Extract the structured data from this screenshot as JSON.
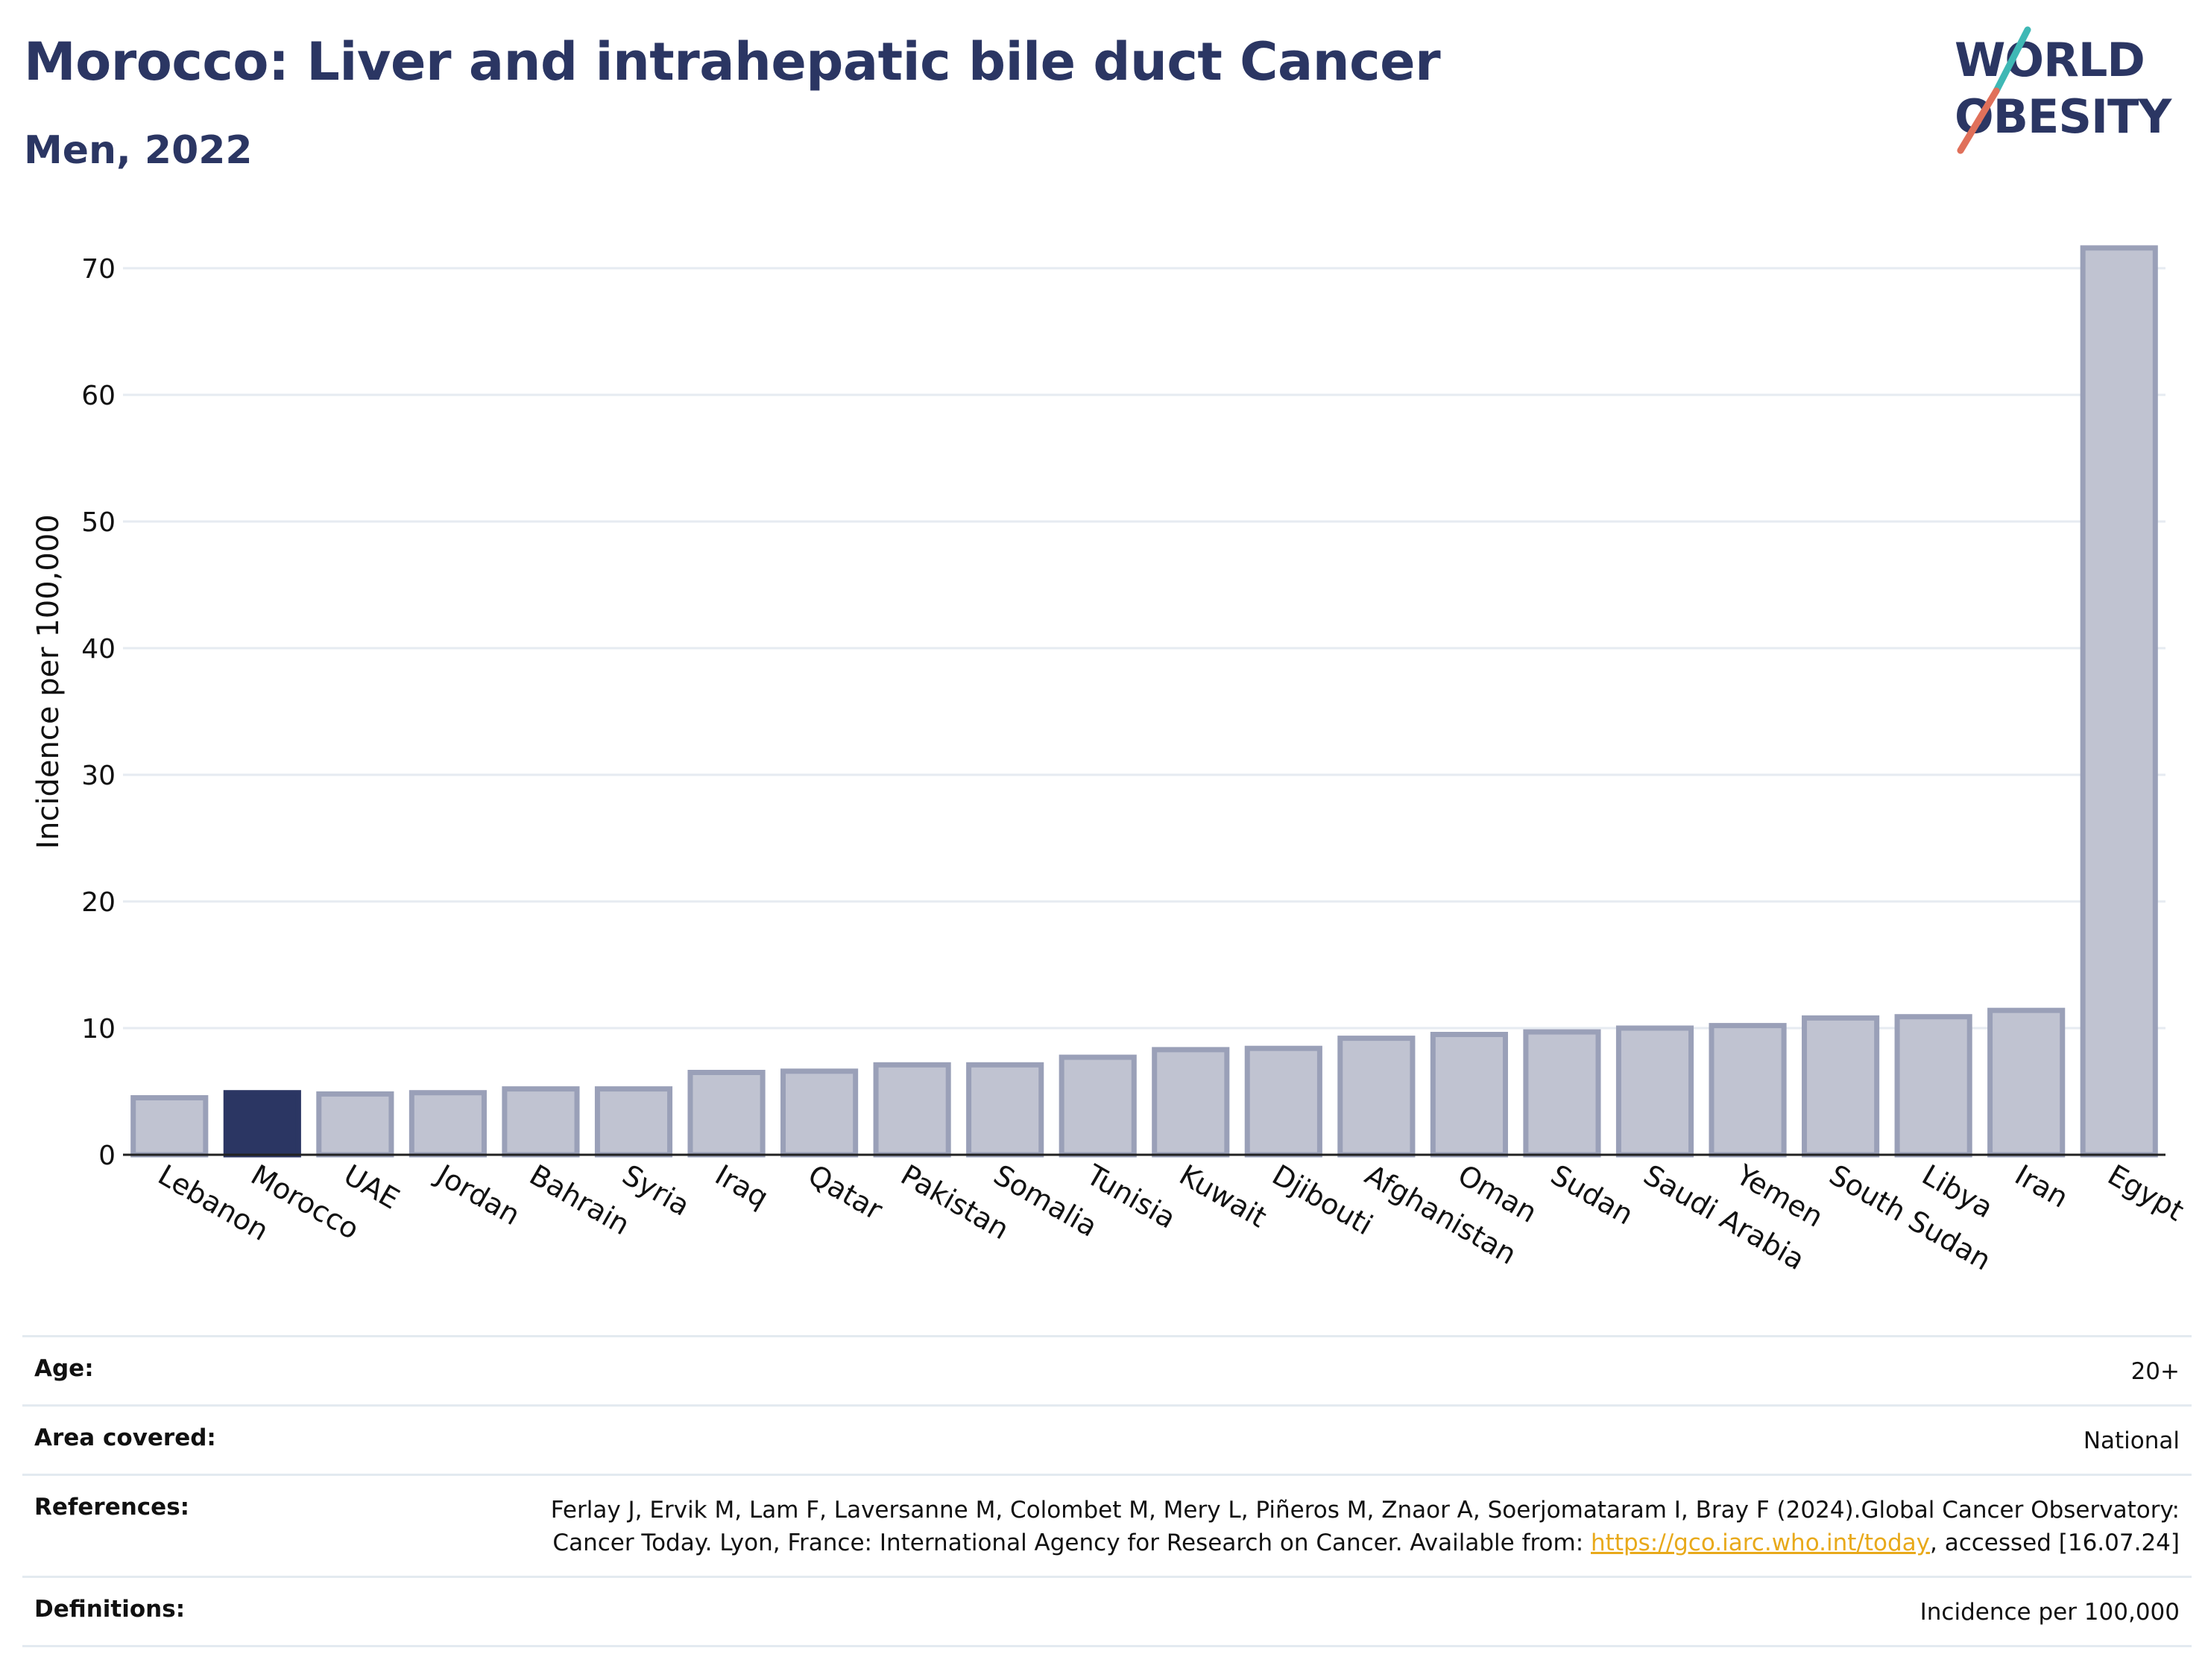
{
  "header": {
    "title": "Morocco: Liver and intrahepatic bile duct Cancer",
    "subtitle": "Men, 2022"
  },
  "logo": {
    "line1": "WORLD",
    "line2": "OBESITY",
    "colors": {
      "text": "#2b3663",
      "slash_top": "#3fb8b5",
      "slash_bottom": "#e0705a"
    }
  },
  "colors": {
    "highlight": "#2b3663",
    "bar_fill": "#c0c3d1",
    "bar_stroke": "#9aa0b8",
    "grid": "#e6ebf1"
  },
  "chart_data": {
    "type": "bar",
    "ylabel": "Incidence per 100,000",
    "ylim": [
      0,
      75
    ],
    "yticks": [
      0,
      10,
      20,
      30,
      40,
      50,
      60,
      70
    ],
    "grid": true,
    "highlight": "Morocco",
    "categories": [
      "Lebanon",
      "Morocco",
      "UAE",
      "Jordan",
      "Bahrain",
      "Syria",
      "Iraq",
      "Qatar",
      "Pakistan",
      "Somalia",
      "Tunisia",
      "Kuwait",
      "Djibouti",
      "Afghanistan",
      "Oman",
      "Sudan",
      "Saudi Arabia",
      "Yemen",
      "South Sudan",
      "Libya",
      "Iran",
      "Egypt"
    ],
    "values": [
      4.5,
      4.9,
      4.8,
      4.9,
      5.2,
      5.2,
      6.5,
      6.6,
      7.1,
      7.1,
      7.7,
      8.3,
      8.4,
      9.2,
      9.5,
      9.7,
      10.0,
      10.2,
      10.8,
      10.9,
      11.4,
      71.6
    ]
  },
  "meta": {
    "age_label": "Age:",
    "age_value": "20+",
    "area_label": "Area covered:",
    "area_value": "National",
    "references_label": "References:",
    "references_pre": "Ferlay J, Ervik M, Lam F, Laversanne M, Colombet M, Mery L, Piñeros M, Znaor A, Soerjomataram I, Bray F (2024).Global Cancer Observatory: Cancer Today. Lyon, France: International Agency for Research on Cancer. Available from: ",
    "references_link": "https://gco.iarc.who.int/today",
    "references_post": ", accessed [16.07.24]",
    "definitions_label": "Definitions:",
    "definitions_value": "Incidence per 100,000"
  }
}
